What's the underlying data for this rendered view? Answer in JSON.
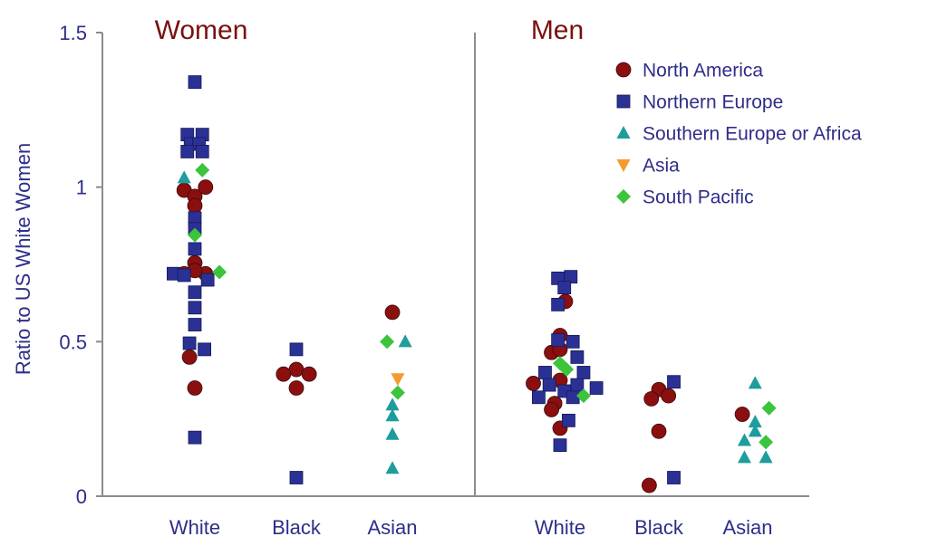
{
  "chart_data": {
    "type": "scatter",
    "ylabel": "Ratio to US White Women",
    "ylim": [
      0,
      1.5
    ],
    "yticks": [
      {
        "value": 0,
        "label": "0"
      },
      {
        "value": 0.5,
        "label": "0.5"
      },
      {
        "value": 1,
        "label": "1"
      },
      {
        "value": 1.5,
        "label": "1.5"
      }
    ],
    "categories": [
      "White",
      "Black",
      "Asian"
    ],
    "panels": [
      {
        "title": "Women",
        "categories": [
          "White",
          "Black",
          "Asian"
        ]
      },
      {
        "title": "Men",
        "categories": [
          "White",
          "Black",
          "Asian"
        ]
      }
    ],
    "legend": {
      "position": "top-right"
    },
    "series": [
      {
        "name": "North America",
        "marker": "circle",
        "color": "#8b0f0f",
        "points": [
          {
            "panel": 0,
            "category": "White",
            "offset": -0.1,
            "y": 0.99
          },
          {
            "panel": 0,
            "category": "White",
            "offset": 0.0,
            "y": 0.97
          },
          {
            "panel": 0,
            "category": "White",
            "offset": 0.1,
            "y": 1.0
          },
          {
            "panel": 0,
            "category": "White",
            "offset": 0.0,
            "y": 0.94
          },
          {
            "panel": 0,
            "category": "White",
            "offset": 0.0,
            "y": 0.755
          },
          {
            "panel": 0,
            "category": "White",
            "offset": -0.1,
            "y": 0.72
          },
          {
            "panel": 0,
            "category": "White",
            "offset": 0.1,
            "y": 0.72
          },
          {
            "panel": 0,
            "category": "White",
            "offset": 0.0,
            "y": 0.73
          },
          {
            "panel": 0,
            "category": "White",
            "offset": -0.05,
            "y": 0.45
          },
          {
            "panel": 0,
            "category": "White",
            "offset": 0.0,
            "y": 0.35
          },
          {
            "panel": 0,
            "category": "Black",
            "offset": 0.0,
            "y": 0.41
          },
          {
            "panel": 0,
            "category": "Black",
            "offset": -0.12,
            "y": 0.395
          },
          {
            "panel": 0,
            "category": "Black",
            "offset": 0.12,
            "y": 0.395
          },
          {
            "panel": 0,
            "category": "Black",
            "offset": 0.0,
            "y": 0.35
          },
          {
            "panel": 0,
            "category": "Asian",
            "offset": 0.0,
            "y": 0.595
          },
          {
            "panel": 1,
            "category": "White",
            "offset": 0.05,
            "y": 0.63
          },
          {
            "panel": 1,
            "category": "White",
            "offset": 0.0,
            "y": 0.52
          },
          {
            "panel": 1,
            "category": "White",
            "offset": -0.08,
            "y": 0.465
          },
          {
            "panel": 1,
            "category": "White",
            "offset": 0.0,
            "y": 0.475
          },
          {
            "panel": 1,
            "category": "White",
            "offset": -0.25,
            "y": 0.365
          },
          {
            "panel": 1,
            "category": "White",
            "offset": 0.0,
            "y": 0.375
          },
          {
            "panel": 1,
            "category": "White",
            "offset": -0.05,
            "y": 0.3
          },
          {
            "panel": 1,
            "category": "White",
            "offset": -0.08,
            "y": 0.28
          },
          {
            "panel": 1,
            "category": "White",
            "offset": 0.0,
            "y": 0.22
          },
          {
            "panel": 1,
            "category": "Black",
            "offset": 0.0,
            "y": 0.345
          },
          {
            "panel": 1,
            "category": "Black",
            "offset": -0.07,
            "y": 0.315
          },
          {
            "panel": 1,
            "category": "Black",
            "offset": 0.09,
            "y": 0.325
          },
          {
            "panel": 1,
            "category": "Black",
            "offset": 0.0,
            "y": 0.21
          },
          {
            "panel": 1,
            "category": "Black",
            "offset": -0.09,
            "y": 0.035
          },
          {
            "panel": 1,
            "category": "Asian",
            "offset": -0.05,
            "y": 0.265
          }
        ]
      },
      {
        "name": "Northern Europe",
        "marker": "square",
        "color": "#2b3194",
        "points": [
          {
            "panel": 0,
            "category": "White",
            "offset": 0.0,
            "y": 1.34
          },
          {
            "panel": 0,
            "category": "White",
            "offset": -0.07,
            "y": 1.17
          },
          {
            "panel": 0,
            "category": "White",
            "offset": 0.07,
            "y": 1.17
          },
          {
            "panel": 0,
            "category": "White",
            "offset": -0.04,
            "y": 1.14
          },
          {
            "panel": 0,
            "category": "White",
            "offset": 0.04,
            "y": 1.14
          },
          {
            "panel": 0,
            "category": "White",
            "offset": -0.07,
            "y": 1.115
          },
          {
            "panel": 0,
            "category": "White",
            "offset": 0.07,
            "y": 1.115
          },
          {
            "panel": 0,
            "category": "White",
            "offset": 0.0,
            "y": 0.9
          },
          {
            "panel": 0,
            "category": "White",
            "offset": 0.0,
            "y": 0.865
          },
          {
            "panel": 0,
            "category": "White",
            "offset": 0.0,
            "y": 0.8
          },
          {
            "panel": 0,
            "category": "White",
            "offset": -0.2,
            "y": 0.72
          },
          {
            "panel": 0,
            "category": "White",
            "offset": -0.1,
            "y": 0.715
          },
          {
            "panel": 0,
            "category": "White",
            "offset": 0.12,
            "y": 0.7
          },
          {
            "panel": 0,
            "category": "White",
            "offset": 0.0,
            "y": 0.66
          },
          {
            "panel": 0,
            "category": "White",
            "offset": 0.0,
            "y": 0.61
          },
          {
            "panel": 0,
            "category": "White",
            "offset": 0.0,
            "y": 0.555
          },
          {
            "panel": 0,
            "category": "White",
            "offset": -0.05,
            "y": 0.495
          },
          {
            "panel": 0,
            "category": "White",
            "offset": 0.09,
            "y": 0.475
          },
          {
            "panel": 0,
            "category": "White",
            "offset": 0.0,
            "y": 0.19
          },
          {
            "panel": 0,
            "category": "Black",
            "offset": 0.0,
            "y": 0.475
          },
          {
            "panel": 0,
            "category": "Black",
            "offset": 0.0,
            "y": 0.06
          },
          {
            "panel": 1,
            "category": "White",
            "offset": -0.02,
            "y": 0.705
          },
          {
            "panel": 1,
            "category": "White",
            "offset": 0.1,
            "y": 0.71
          },
          {
            "panel": 1,
            "category": "White",
            "offset": 0.04,
            "y": 0.675
          },
          {
            "panel": 1,
            "category": "White",
            "offset": -0.02,
            "y": 0.62
          },
          {
            "panel": 1,
            "category": "White",
            "offset": -0.02,
            "y": 0.505
          },
          {
            "panel": 1,
            "category": "White",
            "offset": 0.12,
            "y": 0.5
          },
          {
            "panel": 1,
            "category": "White",
            "offset": 0.16,
            "y": 0.45
          },
          {
            "panel": 1,
            "category": "White",
            "offset": -0.14,
            "y": 0.4
          },
          {
            "panel": 1,
            "category": "White",
            "offset": 0.22,
            "y": 0.4
          },
          {
            "panel": 1,
            "category": "White",
            "offset": -0.1,
            "y": 0.36
          },
          {
            "panel": 1,
            "category": "White",
            "offset": 0.16,
            "y": 0.36
          },
          {
            "panel": 1,
            "category": "White",
            "offset": 0.34,
            "y": 0.35
          },
          {
            "panel": 1,
            "category": "White",
            "offset": 0.04,
            "y": 0.34
          },
          {
            "panel": 1,
            "category": "White",
            "offset": -0.2,
            "y": 0.32
          },
          {
            "panel": 1,
            "category": "White",
            "offset": 0.12,
            "y": 0.32
          },
          {
            "panel": 1,
            "category": "White",
            "offset": 0.08,
            "y": 0.245
          },
          {
            "panel": 1,
            "category": "White",
            "offset": 0.0,
            "y": 0.165
          },
          {
            "panel": 1,
            "category": "Black",
            "offset": 0.14,
            "y": 0.37
          },
          {
            "panel": 1,
            "category": "Black",
            "offset": 0.14,
            "y": 0.06
          }
        ]
      },
      {
        "name": "Southern Europe or Africa",
        "marker": "triangle-up",
        "color": "#1f9c9c",
        "points": [
          {
            "panel": 0,
            "category": "White",
            "offset": -0.1,
            "y": 1.03
          },
          {
            "panel": 0,
            "category": "Asian",
            "offset": 0.12,
            "y": 0.5
          },
          {
            "panel": 0,
            "category": "Asian",
            "offset": 0.0,
            "y": 0.295
          },
          {
            "panel": 0,
            "category": "Asian",
            "offset": 0.0,
            "y": 0.26
          },
          {
            "panel": 0,
            "category": "Asian",
            "offset": 0.0,
            "y": 0.2
          },
          {
            "panel": 0,
            "category": "Asian",
            "offset": 0.0,
            "y": 0.09
          },
          {
            "panel": 1,
            "category": "Asian",
            "offset": 0.07,
            "y": 0.365
          },
          {
            "panel": 1,
            "category": "Asian",
            "offset": 0.07,
            "y": 0.24
          },
          {
            "panel": 1,
            "category": "Asian",
            "offset": 0.07,
            "y": 0.21
          },
          {
            "panel": 1,
            "category": "Asian",
            "offset": -0.03,
            "y": 0.18
          },
          {
            "panel": 1,
            "category": "Asian",
            "offset": -0.03,
            "y": 0.125
          },
          {
            "panel": 1,
            "category": "Asian",
            "offset": 0.17,
            "y": 0.125
          }
        ]
      },
      {
        "name": "Asia",
        "marker": "triangle-down",
        "color": "#f59a2e",
        "points": [
          {
            "panel": 0,
            "category": "Asian",
            "offset": 0.05,
            "y": 0.38
          }
        ]
      },
      {
        "name": "South Pacific",
        "marker": "diamond",
        "color": "#3cc43c",
        "points": [
          {
            "panel": 0,
            "category": "White",
            "offset": 0.07,
            "y": 1.055
          },
          {
            "panel": 0,
            "category": "White",
            "offset": 0.0,
            "y": 0.845
          },
          {
            "panel": 0,
            "category": "White",
            "offset": 0.23,
            "y": 0.725
          },
          {
            "panel": 0,
            "category": "Asian",
            "offset": -0.05,
            "y": 0.5
          },
          {
            "panel": 0,
            "category": "Asian",
            "offset": 0.05,
            "y": 0.335
          },
          {
            "panel": 1,
            "category": "White",
            "offset": 0.0,
            "y": 0.43
          },
          {
            "panel": 1,
            "category": "White",
            "offset": 0.06,
            "y": 0.41
          },
          {
            "panel": 1,
            "category": "White",
            "offset": 0.22,
            "y": 0.325
          },
          {
            "panel": 1,
            "category": "Asian",
            "offset": 0.2,
            "y": 0.285
          },
          {
            "panel": 1,
            "category": "Asian",
            "offset": 0.17,
            "y": 0.175
          }
        ]
      }
    ]
  }
}
